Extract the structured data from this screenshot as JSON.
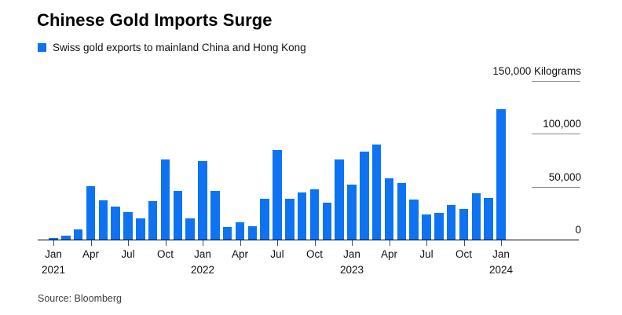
{
  "chart": {
    "title": "Chinese Gold Imports Surge",
    "legend": {
      "label": "Swiss gold exports to mainland China and Hong Kong"
    },
    "source": "Source: Bloomberg"
  },
  "chart_data": {
    "type": "bar",
    "title": "Chinese Gold Imports Surge",
    "series_name": "Swiss gold exports to mainland China and Hong Kong",
    "unit": "Kilograms",
    "ylim": [
      0,
      150000
    ],
    "grid": "right-stub-ticks",
    "legend_position": "top-left",
    "x": [
      "Jan 2021",
      "Feb 2021",
      "Mar 2021",
      "Apr 2021",
      "May 2021",
      "Jun 2021",
      "Jul 2021",
      "Aug 2021",
      "Sep 2021",
      "Oct 2021",
      "Nov 2021",
      "Dec 2021",
      "Jan 2022",
      "Feb 2022",
      "Mar 2022",
      "Apr 2022",
      "May 2022",
      "Jun 2022",
      "Jul 2022",
      "Aug 2022",
      "Sep 2022",
      "Oct 2022",
      "Nov 2022",
      "Dec 2022",
      "Jan 2023",
      "Feb 2023",
      "Mar 2023",
      "Apr 2023",
      "May 2023",
      "Jun 2023",
      "Jul 2023",
      "Aug 2023",
      "Sep 2023",
      "Oct 2023",
      "Nov 2023",
      "Dec 2023",
      "Jan 2024"
    ],
    "values": [
      1500,
      4000,
      9500,
      50500,
      36800,
      31100,
      26100,
      20100,
      36300,
      76100,
      46000,
      20100,
      74600,
      46300,
      11700,
      16200,
      12700,
      38600,
      84600,
      38800,
      44800,
      47200,
      34800,
      75900,
      52200,
      83400,
      90100,
      57700,
      53500,
      37800,
      24100,
      25600,
      32800,
      29300,
      44000,
      39000,
      123000
    ],
    "y_ticks": [
      {
        "value": 0,
        "label": "0"
      },
      {
        "value": 50000,
        "label": "50,000"
      },
      {
        "value": 100000,
        "label": "100,000"
      },
      {
        "value": 150000,
        "label": "150,000 Kilograms"
      }
    ],
    "x_ticks": [
      {
        "index": 0,
        "label": "Jan",
        "year": "2021"
      },
      {
        "index": 3,
        "label": "Apr"
      },
      {
        "index": 6,
        "label": "Jul"
      },
      {
        "index": 9,
        "label": "Oct"
      },
      {
        "index": 12,
        "label": "Jan",
        "year": "2022"
      },
      {
        "index": 15,
        "label": "Apr"
      },
      {
        "index": 18,
        "label": "Jul"
      },
      {
        "index": 21,
        "label": "Oct"
      },
      {
        "index": 24,
        "label": "Jan",
        "year": "2023"
      },
      {
        "index": 27,
        "label": "Apr"
      },
      {
        "index": 30,
        "label": "Jul"
      },
      {
        "index": 33,
        "label": "Oct"
      },
      {
        "index": 36,
        "label": "Jan",
        "year": "2024"
      }
    ],
    "colors": {
      "bar": "#0e73f2",
      "axis": "#000000",
      "x_tick": "#4d4d4d",
      "grid_stub": "#8a8a8a"
    }
  }
}
